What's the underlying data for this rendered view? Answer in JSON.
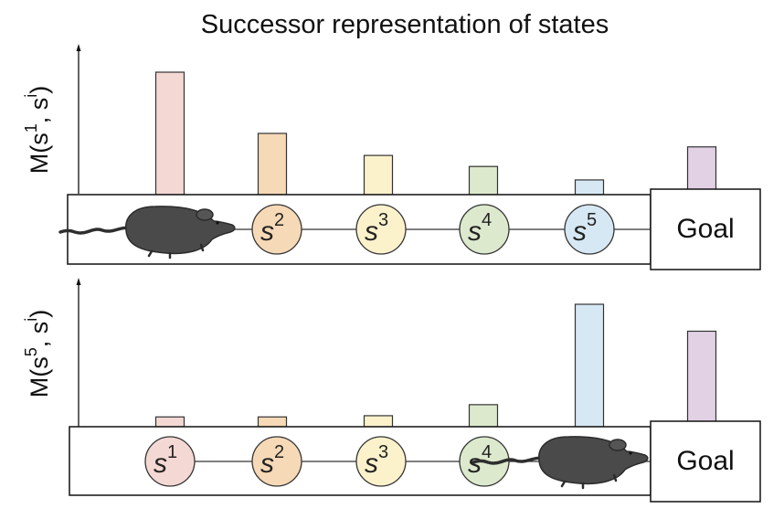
{
  "title": "Successor representation of states",
  "goal_label": "Goal",
  "colors": {
    "s1": "#f4d8d4",
    "s2": "#f6d9b6",
    "s3": "#fbf2cc",
    "s4": "#dde9cd",
    "s5": "#d6e8f4",
    "goal": "#e2d0e5",
    "mouse": "#4a4a4a"
  },
  "states": [
    {
      "symbol": "s",
      "sup": "1",
      "color_key": "s1"
    },
    {
      "symbol": "s",
      "sup": "2",
      "color_key": "s2"
    },
    {
      "symbol": "s",
      "sup": "3",
      "color_key": "s3"
    },
    {
      "symbol": "s",
      "sup": "4",
      "color_key": "s4"
    },
    {
      "symbol": "s",
      "sup": "5",
      "color_key": "s5"
    }
  ],
  "panels": [
    {
      "ylabel": {
        "prefix": "M(s",
        "sup1": "1",
        "mid": ", s",
        "sup2": "i",
        "suffix": ")"
      },
      "values": [
        1.0,
        0.5,
        0.32,
        0.23,
        0.12,
        0.39
      ],
      "mouse_at": "1",
      "hidden_state": "1"
    },
    {
      "ylabel": {
        "prefix": "M(s",
        "sup1": "5",
        "mid": ", s",
        "sup2": "i",
        "suffix": ")"
      },
      "values": [
        0.08,
        0.08,
        0.09,
        0.18,
        1.0,
        0.78
      ],
      "mouse_at": "5",
      "hidden_state": ""
    }
  ]
}
